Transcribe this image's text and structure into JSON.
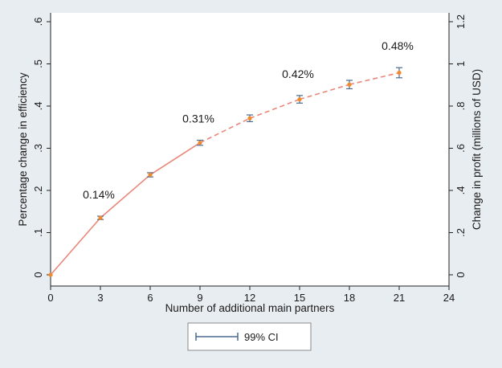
{
  "chart_data": {
    "type": "line",
    "title": "",
    "xlabel": "Number of additional main partners",
    "ylabel": "Percentage change in efficiency",
    "y2label": "Change in profit (millions of USD)",
    "x_ticks": [
      "0",
      "3",
      "6",
      "9",
      "12",
      "15",
      "18",
      "21",
      "24"
    ],
    "y_ticks": [
      "0",
      ".1",
      ".2",
      ".3",
      ".4",
      ".5",
      ".6"
    ],
    "y2_ticks": [
      "0",
      ".2",
      ".4",
      ".6",
      ".8",
      "1",
      "1.2"
    ],
    "xlim": [
      0,
      24
    ],
    "ylim": [
      0,
      0.6
    ],
    "y2lim": [
      0,
      1.2
    ],
    "grid": false,
    "legend": {
      "placement": "bottom-center",
      "entries": [
        "99% CI"
      ]
    },
    "series": [
      {
        "x": [
          0,
          3,
          6,
          9,
          12,
          15,
          18,
          21
        ],
        "y": [
          0.0,
          0.135,
          0.237,
          0.313,
          0.371,
          0.416,
          0.451,
          0.479
        ],
        "ci_low": [
          0.0,
          0.131,
          0.232,
          0.307,
          0.363,
          0.407,
          0.441,
          0.467
        ],
        "ci_high": [
          0.0,
          0.139,
          0.242,
          0.319,
          0.379,
          0.425,
          0.461,
          0.491
        ],
        "solid_until_x": 9
      }
    ],
    "annotations": [
      {
        "x": 3,
        "text": "0.14%"
      },
      {
        "x": 9,
        "text": "0.31%"
      },
      {
        "x": 15,
        "text": "0.42%"
      },
      {
        "x": 21,
        "text": "0.48%"
      }
    ],
    "colors": {
      "line": "#e8877a",
      "marker": "#f08a2c",
      "ci": "#4a6a8f",
      "background": "#e8edf2",
      "plot_background": "#ffffff"
    }
  }
}
